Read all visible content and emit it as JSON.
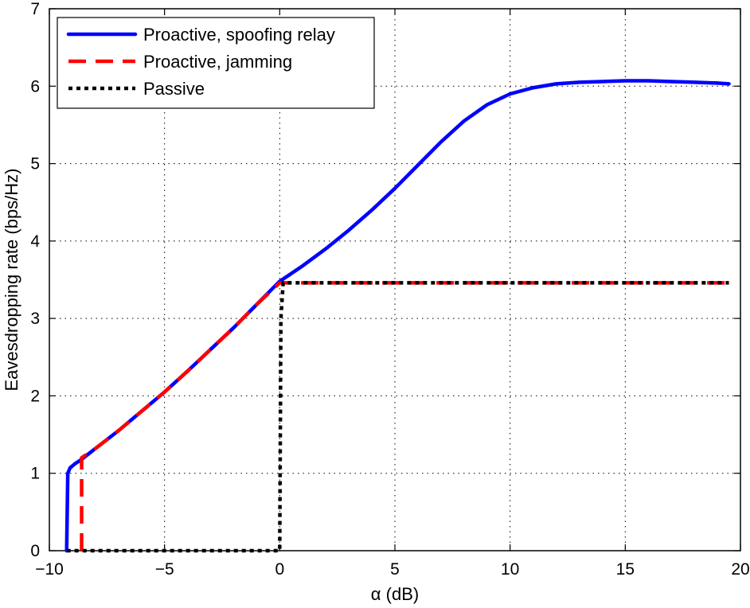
{
  "chart_data": {
    "type": "line",
    "title": "",
    "xlabel": "α (dB)",
    "ylabel": "Eavesdropping rate (bps/Hz)",
    "xlim": [
      -10,
      20
    ],
    "ylim": [
      0,
      7
    ],
    "xticks": [
      -10,
      -5,
      0,
      5,
      10,
      15,
      20
    ],
    "yticks": [
      0,
      1,
      2,
      3,
      4,
      5,
      6,
      7
    ],
    "xtick_labels": [
      "−10",
      "−5",
      "0",
      "5",
      "10",
      "15",
      "20"
    ],
    "ytick_labels": [
      "0",
      "1",
      "2",
      "3",
      "4",
      "5",
      "6",
      "7"
    ],
    "grid": true,
    "legend_position": "top-left",
    "series": [
      {
        "name": "Proactive, spoofing relay",
        "color": "#0000ff",
        "style": "solid",
        "x": [
          -9.25,
          -9.2,
          -9.1,
          -8.9,
          -8.6,
          -8.0,
          -7.0,
          -6.0,
          -5.0,
          -4.0,
          -3.0,
          -2.0,
          -1.0,
          0.0,
          1.0,
          2.0,
          3.0,
          4.0,
          5.0,
          6.0,
          7.0,
          8.0,
          9.0,
          10.0,
          11.0,
          12.0,
          13.0,
          14.0,
          15.0,
          16.0,
          17.0,
          18.0,
          19.0,
          19.5
        ],
        "y": [
          0,
          1.0,
          1.07,
          1.12,
          1.18,
          1.32,
          1.55,
          1.8,
          2.05,
          2.32,
          2.6,
          2.88,
          3.18,
          3.48,
          3.68,
          3.9,
          4.14,
          4.4,
          4.68,
          4.98,
          5.28,
          5.55,
          5.76,
          5.9,
          5.98,
          6.03,
          6.05,
          6.06,
          6.07,
          6.07,
          6.06,
          6.05,
          6.04,
          6.03
        ]
      },
      {
        "name": "Proactive, jamming",
        "color": "#ff0000",
        "style": "dashed",
        "x": [
          -8.6,
          -8.6,
          -8.0,
          -7.0,
          -6.0,
          -5.0,
          -4.0,
          -3.0,
          -2.0,
          -1.0,
          0.0,
          0.15,
          19.5
        ],
        "y": [
          0,
          1.2,
          1.32,
          1.55,
          1.8,
          2.05,
          2.32,
          2.6,
          2.88,
          3.18,
          3.46,
          3.46,
          3.46
        ]
      },
      {
        "name": "Passive",
        "color": "#000000",
        "style": "dotted",
        "x": [
          -9.25,
          -8.6,
          0.0,
          0.05,
          0.15,
          19.5
        ],
        "y": [
          0,
          0,
          0,
          3.0,
          3.46,
          3.46
        ]
      }
    ]
  }
}
